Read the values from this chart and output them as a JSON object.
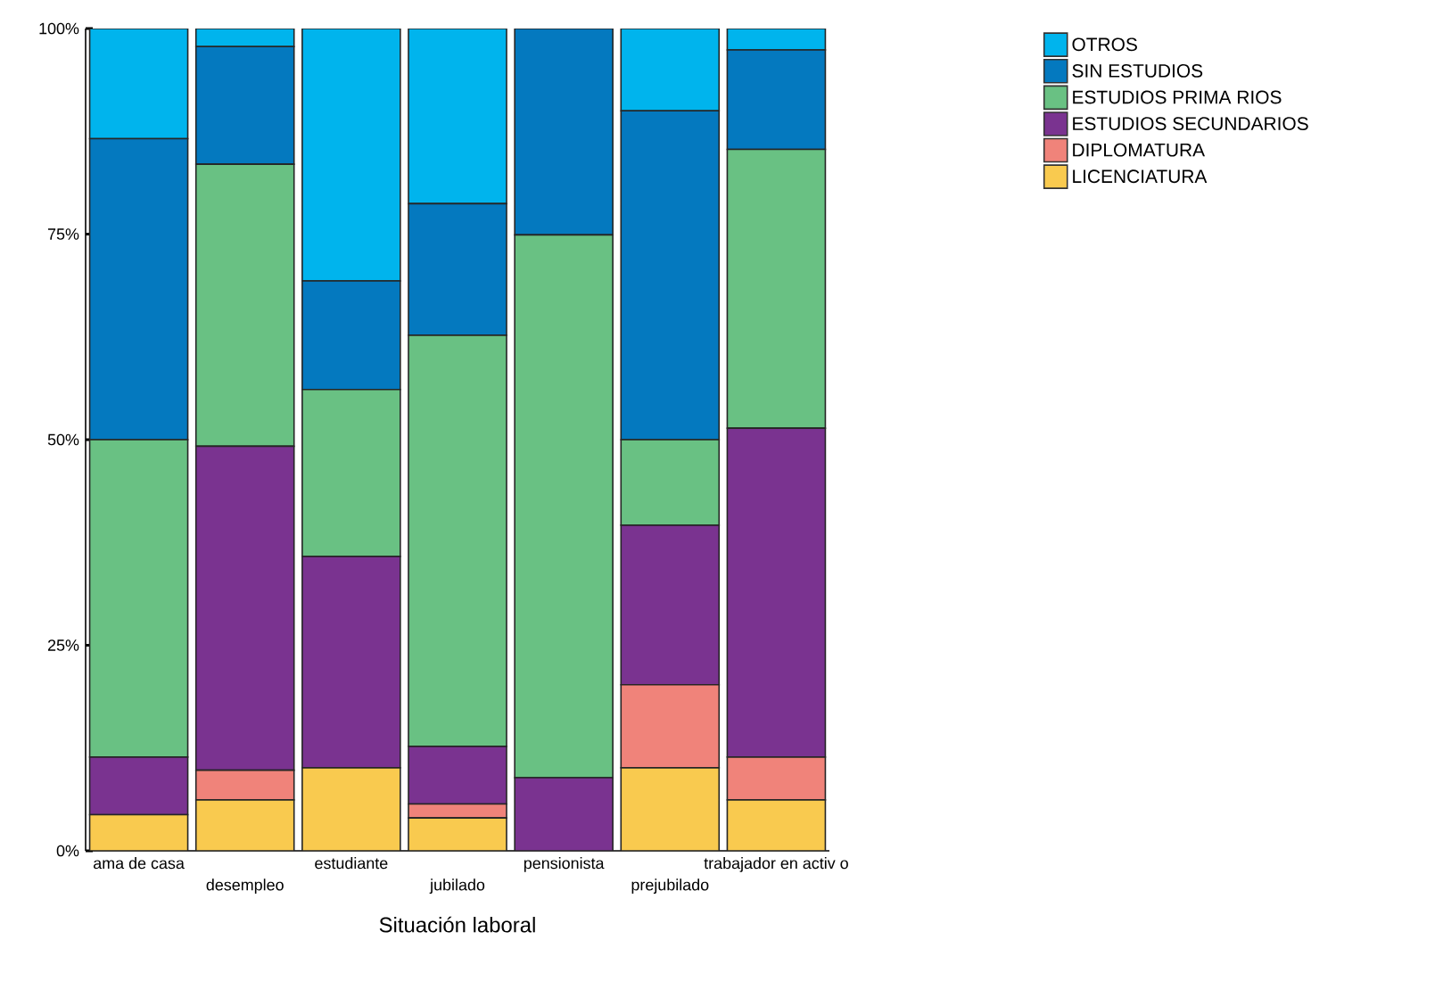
{
  "chart_data": {
    "type": "bar",
    "stacked": true,
    "xlabel": "Situación laboral",
    "categories": [
      "ama de casa",
      "desempleo",
      "estudiante",
      "jubilado",
      "pensionista",
      "prejubilado",
      "trabajador en activ o"
    ],
    "series": [
      {
        "name": "LICENCIATURA",
        "color": "#f9ca4f",
        "values": [
          4.4,
          6.2,
          10.1,
          4.0,
          0,
          10.1,
          6.2
        ]
      },
      {
        "name": "DIPLOMATURA",
        "color": "#f0837a",
        "values": [
          0,
          3.6,
          0,
          1.7,
          0,
          10.1,
          5.2
        ]
      },
      {
        "name": "ESTUDIOS SECUNDARIOS",
        "color": "#7a3390",
        "values": [
          7.0,
          39.4,
          25.7,
          7.0,
          8.9,
          19.4,
          40.0
        ]
      },
      {
        "name": "ESTUDIOS PRIMA RIOS",
        "color": "#69c183",
        "values": [
          38.6,
          34.3,
          20.3,
          50.0,
          66.0,
          10.4,
          33.9
        ]
      },
      {
        "name": "SIN ESTUDIOS",
        "color": "#0479bf",
        "values": [
          36.6,
          14.3,
          13.2,
          16.0,
          25.1,
          40.0,
          12.1
        ]
      },
      {
        "name": "OTROS",
        "color": "#00b4ed",
        "values": [
          13.4,
          2.2,
          30.7,
          21.3,
          0,
          10.0,
          2.6
        ]
      }
    ],
    "ylim": [
      0,
      100
    ],
    "yticks": [
      {
        "value": 0,
        "label": "0%"
      },
      {
        "value": 25,
        "label": "25%"
      },
      {
        "value": 50,
        "label": "50%"
      },
      {
        "value": 75,
        "label": "75%"
      },
      {
        "value": 100,
        "label": "100%"
      }
    ],
    "legend": "top right",
    "grid": false
  }
}
